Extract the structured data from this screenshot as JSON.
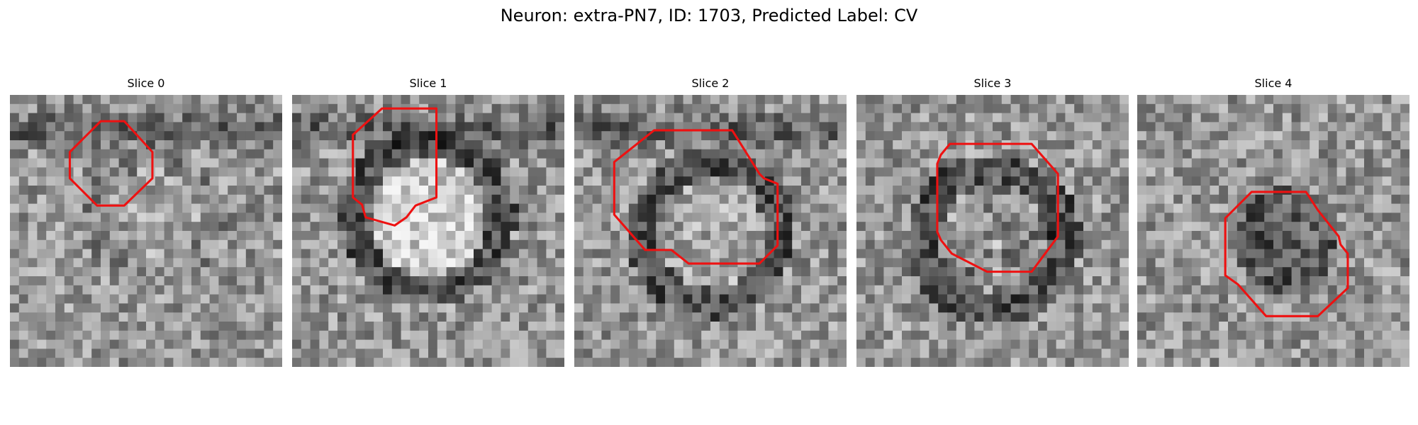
{
  "figure": {
    "title": "Neuron: extra-PN7, ID: 1703, Predicted Label: CV"
  },
  "colors": {
    "contour": "#ee1111",
    "background": "#ffffff"
  },
  "grid_size": 30,
  "slices": [
    {
      "title": "Slice 0",
      "seed": 11,
      "center": [
        15.8,
        13.2
      ],
      "radius": 6.4,
      "interior": "light",
      "ring": "faint",
      "dark_band_top": true,
      "contour": [
        [
          10,
          2.9
        ],
        [
          6.6,
          6.3
        ],
        [
          6.6,
          9.2
        ],
        [
          9.6,
          12.2
        ],
        [
          12.6,
          12.2
        ],
        [
          15.7,
          9.2
        ],
        [
          15.7,
          6.3
        ],
        [
          12.6,
          2.9
        ]
      ]
    },
    {
      "title": "Slice 1",
      "seed": 23,
      "center": [
        15.0,
        13.5
      ],
      "radius": 8.0,
      "interior": "bright",
      "ring": "dark",
      "dark_band_top": true,
      "contour": [
        [
          9.9,
          1.5
        ],
        [
          6.7,
          4.4
        ],
        [
          6.7,
          11.3
        ],
        [
          7.7,
          12.1
        ],
        [
          8.1,
          13.5
        ],
        [
          11.3,
          14.4
        ],
        [
          12.6,
          13.5
        ],
        [
          13.6,
          12.2
        ],
        [
          15.9,
          11.3
        ],
        [
          15.9,
          1.5
        ]
      ]
    },
    {
      "title": "Slice 2",
      "seed": 37,
      "center": [
        15.2,
        15.3
      ],
      "radius": 7.6,
      "interior": "medium",
      "ring": "dark",
      "dark_band_top": true,
      "contour": [
        [
          8.8,
          3.9
        ],
        [
          4.4,
          7.4
        ],
        [
          4.4,
          13.2
        ],
        [
          7.8,
          17.1
        ],
        [
          10.7,
          17.1
        ],
        [
          12.6,
          18.6
        ],
        [
          20.4,
          18.6
        ],
        [
          22.4,
          16.6
        ],
        [
          22.4,
          9.8
        ],
        [
          20.9,
          9.2
        ],
        [
          20.4,
          8.7
        ],
        [
          17.4,
          3.9
        ]
      ]
    },
    {
      "title": "Slice 3",
      "seed": 53,
      "center": [
        15.2,
        16.0
      ],
      "radius": 7.8,
      "interior": "mottled",
      "ring": "dark",
      "dark_band_top": false,
      "contour": [
        [
          10.3,
          5.4
        ],
        [
          9.3,
          6.6
        ],
        [
          8.9,
          7.6
        ],
        [
          8.9,
          15.1
        ],
        [
          9.3,
          16.0
        ],
        [
          10.5,
          17.5
        ],
        [
          14.4,
          19.5
        ],
        [
          19.3,
          19.5
        ],
        [
          22.2,
          15.6
        ],
        [
          22.2,
          8.7
        ],
        [
          19.3,
          5.4
        ]
      ]
    },
    {
      "title": "Slice 4",
      "seed": 71,
      "center": [
        16.5,
        16.0
      ],
      "radius": 6.8,
      "interior": "dark",
      "ring": "none",
      "dark_band_top": false,
      "contour": [
        [
          12.6,
          10.7
        ],
        [
          9.7,
          13.6
        ],
        [
          9.7,
          19.9
        ],
        [
          11.1,
          20.9
        ],
        [
          14.2,
          24.4
        ],
        [
          19.9,
          24.4
        ],
        [
          23.2,
          21.3
        ],
        [
          23.2,
          17.5
        ],
        [
          22.4,
          16.5
        ],
        [
          22.2,
          15.6
        ],
        [
          19.9,
          12.7
        ],
        [
          18.6,
          10.7
        ]
      ]
    }
  ]
}
